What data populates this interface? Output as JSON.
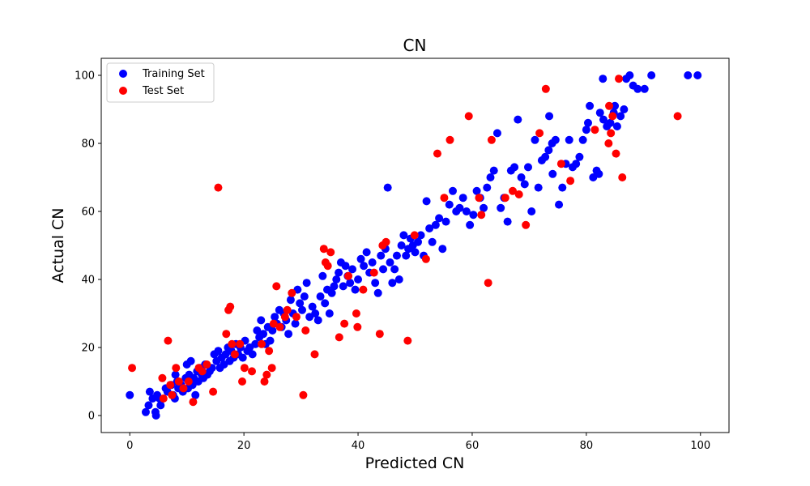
{
  "chart_data": {
    "type": "scatter",
    "title": "CN",
    "xlabel": "Predicted CN",
    "ylabel": "Actual CN",
    "xlim": [
      -5,
      105
    ],
    "ylim": [
      -5,
      105
    ],
    "xticks": [
      0,
      20,
      40,
      60,
      80,
      100
    ],
    "yticks": [
      0,
      20,
      40,
      60,
      80,
      100
    ],
    "grid": false,
    "legend_position": "top-left",
    "series": [
      {
        "name": "Training Set",
        "color": "#0000ff",
        "points": [
          [
            0,
            6
          ],
          [
            2.8,
            1
          ],
          [
            3.3,
            3
          ],
          [
            3.5,
            7
          ],
          [
            4,
            5
          ],
          [
            4.5,
            1
          ],
          [
            4.6,
            0
          ],
          [
            4.8,
            6
          ],
          [
            5.2,
            5
          ],
          [
            5.4,
            3
          ],
          [
            6.3,
            8
          ],
          [
            6.6,
            7
          ],
          [
            7.3,
            9
          ],
          [
            7.6,
            6
          ],
          [
            7.9,
            5
          ],
          [
            8.0,
            12
          ],
          [
            8.3,
            10
          ],
          [
            8.5,
            8
          ],
          [
            9.0,
            9
          ],
          [
            9.3,
            7
          ],
          [
            9.8,
            11
          ],
          [
            10.0,
            15
          ],
          [
            10.2,
            8
          ],
          [
            10.4,
            12
          ],
          [
            10.7,
            16
          ],
          [
            11.0,
            9
          ],
          [
            11.2,
            11
          ],
          [
            11.5,
            6
          ],
          [
            11.8,
            13
          ],
          [
            12.0,
            10
          ],
          [
            12.3,
            14
          ],
          [
            12.6,
            12
          ],
          [
            12.9,
            11
          ],
          [
            13.2,
            15
          ],
          [
            13.6,
            12
          ],
          [
            14.0,
            13
          ],
          [
            14.4,
            14
          ],
          [
            14.8,
            18
          ],
          [
            15.2,
            16
          ],
          [
            15.5,
            19
          ],
          [
            15.8,
            14
          ],
          [
            16.1,
            17
          ],
          [
            16.5,
            15
          ],
          [
            16.8,
            18
          ],
          [
            17.2,
            20
          ],
          [
            17.5,
            16
          ],
          [
            17.8,
            19
          ],
          [
            18.2,
            17
          ],
          [
            18.6,
            21
          ],
          [
            19.0,
            18
          ],
          [
            19.4,
            20
          ],
          [
            19.8,
            17
          ],
          [
            20.2,
            22
          ],
          [
            20.6,
            19
          ],
          [
            21.0,
            20
          ],
          [
            21.5,
            18
          ],
          [
            22.0,
            21
          ],
          [
            22.3,
            25
          ],
          [
            22.7,
            23
          ],
          [
            23.0,
            28
          ],
          [
            23.4,
            24
          ],
          [
            23.8,
            21
          ],
          [
            24.2,
            26
          ],
          [
            24.6,
            22
          ],
          [
            25.0,
            25
          ],
          [
            25.4,
            29
          ],
          [
            25.8,
            27
          ],
          [
            26.2,
            31
          ],
          [
            26.6,
            26
          ],
          [
            27.0,
            30
          ],
          [
            27.4,
            28
          ],
          [
            27.8,
            24
          ],
          [
            28.2,
            34
          ],
          [
            28.6,
            30
          ],
          [
            29.0,
            27
          ],
          [
            29.4,
            37
          ],
          [
            29.8,
            33
          ],
          [
            30.2,
            31
          ],
          [
            30.6,
            35
          ],
          [
            31.0,
            39
          ],
          [
            31.5,
            29
          ],
          [
            32.0,
            32
          ],
          [
            32.5,
            30
          ],
          [
            33.0,
            28
          ],
          [
            33.4,
            35
          ],
          [
            33.8,
            41
          ],
          [
            34.2,
            33
          ],
          [
            34.6,
            37
          ],
          [
            35.0,
            30
          ],
          [
            35.4,
            36
          ],
          [
            35.8,
            38
          ],
          [
            36.2,
            40
          ],
          [
            36.6,
            42
          ],
          [
            37.0,
            45
          ],
          [
            37.4,
            38
          ],
          [
            37.8,
            44
          ],
          [
            38.2,
            41
          ],
          [
            38.6,
            39
          ],
          [
            39.0,
            43
          ],
          [
            39.5,
            37
          ],
          [
            40.0,
            40
          ],
          [
            40.5,
            46
          ],
          [
            41.0,
            44
          ],
          [
            41.5,
            48
          ],
          [
            42.0,
            42
          ],
          [
            42.5,
            45
          ],
          [
            43.0,
            39
          ],
          [
            43.5,
            36
          ],
          [
            44.0,
            47
          ],
          [
            44.4,
            43
          ],
          [
            44.8,
            49
          ],
          [
            45.2,
            67
          ],
          [
            45.6,
            45
          ],
          [
            46.0,
            39
          ],
          [
            46.4,
            43
          ],
          [
            46.8,
            47
          ],
          [
            47.2,
            40
          ],
          [
            47.6,
            50
          ],
          [
            48.0,
            53
          ],
          [
            48.4,
            47
          ],
          [
            48.8,
            49
          ],
          [
            49.2,
            52
          ],
          [
            49.6,
            50
          ],
          [
            50.0,
            48
          ],
          [
            50.5,
            51
          ],
          [
            51.0,
            53
          ],
          [
            51.5,
            47
          ],
          [
            52.0,
            63
          ],
          [
            52.5,
            55
          ],
          [
            53.0,
            51
          ],
          [
            53.6,
            56
          ],
          [
            54.2,
            58
          ],
          [
            54.8,
            49
          ],
          [
            55.4,
            57
          ],
          [
            56.0,
            62
          ],
          [
            56.6,
            66
          ],
          [
            57.2,
            60
          ],
          [
            57.8,
            61
          ],
          [
            58.4,
            64
          ],
          [
            59.0,
            60
          ],
          [
            59.6,
            56
          ],
          [
            60.2,
            59
          ],
          [
            60.8,
            66
          ],
          [
            61.4,
            64
          ],
          [
            62.0,
            61
          ],
          [
            62.6,
            67
          ],
          [
            63.2,
            70
          ],
          [
            63.8,
            72
          ],
          [
            64.4,
            83
          ],
          [
            65.0,
            61
          ],
          [
            65.6,
            64
          ],
          [
            66.2,
            57
          ],
          [
            66.8,
            72
          ],
          [
            67.4,
            73
          ],
          [
            68.0,
            87
          ],
          [
            68.6,
            70
          ],
          [
            69.2,
            68
          ],
          [
            69.8,
            73
          ],
          [
            70.4,
            60
          ],
          [
            71.0,
            81
          ],
          [
            71.6,
            67
          ],
          [
            72.2,
            75
          ],
          [
            72.8,
            76
          ],
          [
            73.4,
            78
          ],
          [
            74.0,
            80
          ],
          [
            74.6,
            81
          ],
          [
            75.2,
            62
          ],
          [
            75.8,
            67
          ],
          [
            76.4,
            74
          ],
          [
            77.0,
            81
          ],
          [
            77.6,
            73
          ],
          [
            78.2,
            74
          ],
          [
            78.8,
            76
          ],
          [
            79.4,
            81
          ],
          [
            80.0,
            84
          ],
          [
            80.6,
            91
          ],
          [
            81.2,
            70
          ],
          [
            81.8,
            72
          ],
          [
            82.4,
            89
          ],
          [
            83.0,
            87
          ],
          [
            83.6,
            85
          ],
          [
            84.2,
            86
          ],
          [
            84.8,
            89
          ],
          [
            85.4,
            85
          ],
          [
            86.0,
            88
          ],
          [
            86.6,
            90
          ],
          [
            87.0,
            99
          ],
          [
            87.6,
            100
          ],
          [
            88.2,
            97
          ],
          [
            89.0,
            96
          ],
          [
            90.2,
            96
          ],
          [
            91.4,
            100
          ],
          [
            97.8,
            100
          ],
          [
            99.5,
            100
          ],
          [
            73.5,
            88
          ],
          [
            74.1,
            71
          ],
          [
            82.9,
            99
          ],
          [
            80.3,
            86
          ],
          [
            82.2,
            71
          ],
          [
            85.0,
            91
          ]
        ]
      },
      {
        "name": "Test Set",
        "color": "#ff0000",
        "points": [
          [
            0.4,
            14
          ],
          [
            5.7,
            11
          ],
          [
            5.9,
            5
          ],
          [
            6.7,
            22
          ],
          [
            7.1,
            9
          ],
          [
            7.4,
            6
          ],
          [
            8.1,
            14
          ],
          [
            8.6,
            10
          ],
          [
            9.4,
            8
          ],
          [
            10.3,
            10
          ],
          [
            11.1,
            4
          ],
          [
            12.1,
            14
          ],
          [
            12.7,
            13
          ],
          [
            13.5,
            15
          ],
          [
            14.6,
            7
          ],
          [
            15.5,
            67
          ],
          [
            16.9,
            24
          ],
          [
            17.3,
            31
          ],
          [
            17.6,
            32
          ],
          [
            17.9,
            21
          ],
          [
            18.4,
            18
          ],
          [
            19.3,
            21
          ],
          [
            19.7,
            10
          ],
          [
            20.1,
            14
          ],
          [
            21.4,
            13
          ],
          [
            23.1,
            21
          ],
          [
            23.6,
            10
          ],
          [
            24.0,
            12
          ],
          [
            24.4,
            19
          ],
          [
            24.9,
            14
          ],
          [
            25.2,
            27
          ],
          [
            25.7,
            38
          ],
          [
            26.3,
            26
          ],
          [
            27.2,
            29
          ],
          [
            27.6,
            31
          ],
          [
            28.4,
            36
          ],
          [
            29.2,
            29
          ],
          [
            30.4,
            6
          ],
          [
            30.8,
            25
          ],
          [
            32.4,
            18
          ],
          [
            34.0,
            49
          ],
          [
            34.3,
            45
          ],
          [
            34.7,
            44
          ],
          [
            35.2,
            48
          ],
          [
            36.7,
            23
          ],
          [
            37.6,
            27
          ],
          [
            38.3,
            41
          ],
          [
            39.7,
            30
          ],
          [
            39.9,
            26
          ],
          [
            40.9,
            37
          ],
          [
            42.8,
            42
          ],
          [
            43.8,
            24
          ],
          [
            44.3,
            50
          ],
          [
            44.9,
            51
          ],
          [
            48.7,
            22
          ],
          [
            49.9,
            53
          ],
          [
            51.9,
            46
          ],
          [
            53.9,
            77
          ],
          [
            55.1,
            64
          ],
          [
            56.1,
            81
          ],
          [
            59.4,
            88
          ],
          [
            61.2,
            64
          ],
          [
            61.6,
            59
          ],
          [
            62.8,
            39
          ],
          [
            63.4,
            81
          ],
          [
            65.8,
            64
          ],
          [
            67.1,
            66
          ],
          [
            68.2,
            65
          ],
          [
            69.4,
            56
          ],
          [
            71.8,
            83
          ],
          [
            72.9,
            96
          ],
          [
            75.6,
            74
          ],
          [
            77.2,
            69
          ],
          [
            81.5,
            84
          ],
          [
            83.9,
            80
          ],
          [
            84.0,
            91
          ],
          [
            84.3,
            83
          ],
          [
            84.6,
            88
          ],
          [
            85.2,
            77
          ],
          [
            85.7,
            99
          ],
          [
            86.3,
            70
          ],
          [
            96.0,
            88
          ]
        ]
      }
    ]
  }
}
